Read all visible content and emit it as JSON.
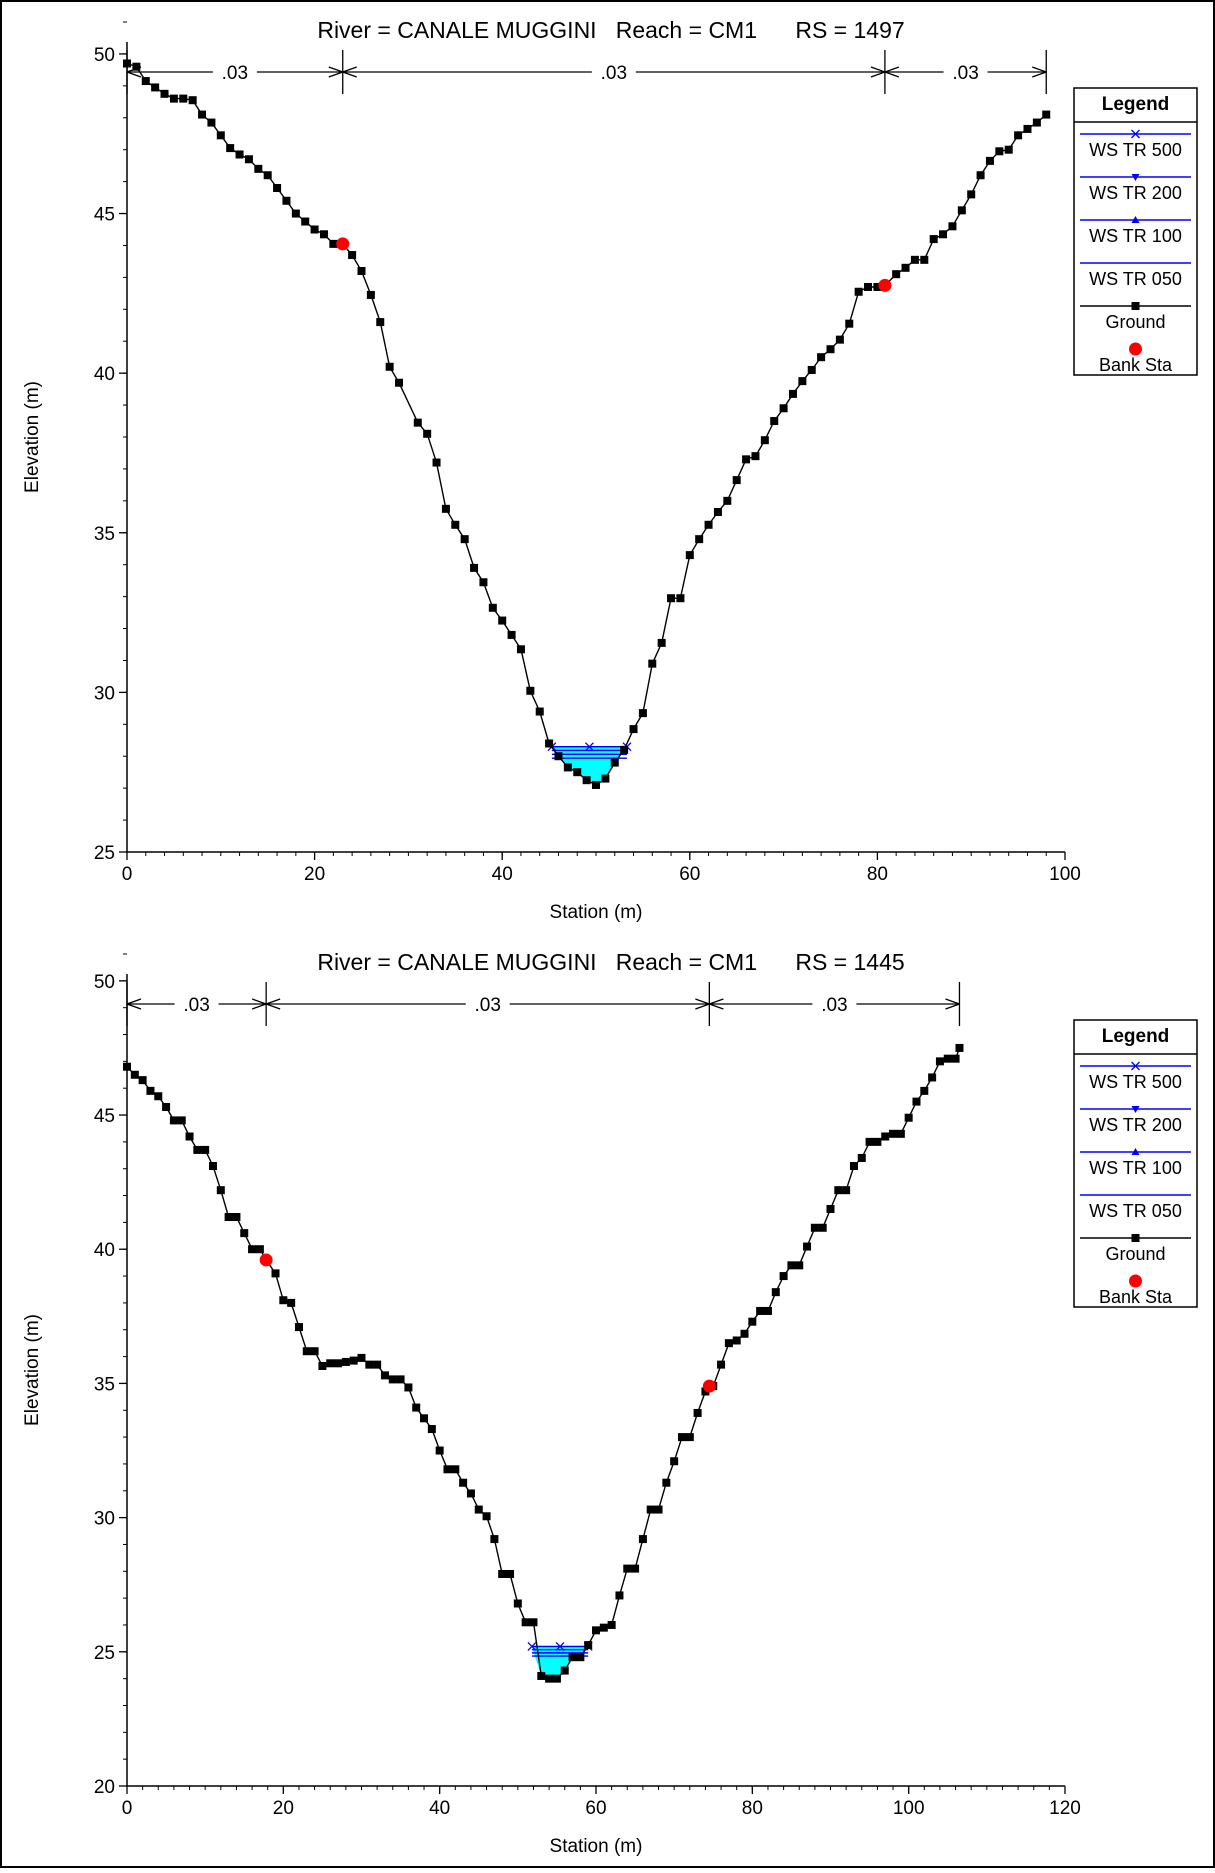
{
  "chart_data": [
    {
      "type": "line",
      "title": "River = CANALE MUGGINI   Reach = CM1      RS = 1497",
      "xlabel": "Station (m)",
      "ylabel": "Elevation (m)",
      "xlim": [
        0,
        100
      ],
      "ylim": [
        25,
        51
      ],
      "xticks": [
        "0",
        "20",
        "40",
        "60",
        "80",
        "100"
      ],
      "yticks": [
        "25",
        "30",
        "35",
        "40",
        "45",
        "50"
      ],
      "grid": false,
      "legend_position": "right",
      "legend": {
        "title": "Legend",
        "items": [
          "WS TR 500",
          "WS TR 200",
          "WS TR 100",
          "WS TR 050",
          "Ground",
          "Bank Sta"
        ]
      },
      "manning": [
        {
          "label": ".03",
          "from": 0,
          "to": 23
        },
        {
          "label": ".03",
          "from": 23,
          "to": 80.8
        },
        {
          "label": ".03",
          "from": 80.8,
          "to": 98
        }
      ],
      "bank_stations": [
        [
          23,
          44.05
        ],
        [
          80.8,
          42.75
        ]
      ],
      "water_surface": {
        "elevation": 28.3,
        "left": 45.3,
        "right": 53.3
      },
      "series": [
        {
          "name": "Ground",
          "points": [
            [
              0,
              49.7
            ],
            [
              1,
              49.6
            ],
            [
              2,
              49.15
            ],
            [
              3,
              48.95
            ],
            [
              4,
              48.75
            ],
            [
              5,
              48.6
            ],
            [
              6,
              48.6
            ],
            [
              7,
              48.55
            ],
            [
              8,
              48.1
            ],
            [
              9,
              47.85
            ],
            [
              10,
              47.45
            ],
            [
              11,
              47.05
            ],
            [
              12,
              46.85
            ],
            [
              13,
              46.7
            ],
            [
              14,
              46.4
            ],
            [
              15,
              46.2
            ],
            [
              16,
              45.8
            ],
            [
              17,
              45.4
            ],
            [
              18,
              45.0
            ],
            [
              19,
              44.75
            ],
            [
              20,
              44.5
            ],
            [
              21,
              44.35
            ],
            [
              22,
              44.05
            ],
            [
              23,
              44.05
            ],
            [
              24,
              43.7
            ],
            [
              25,
              43.2
            ],
            [
              26,
              42.45
            ],
            [
              27,
              41.6
            ],
            [
              28,
              40.2
            ],
            [
              29,
              39.7
            ],
            [
              31,
              38.45
            ],
            [
              32,
              38.1
            ],
            [
              33,
              37.2
            ],
            [
              34,
              35.75
            ],
            [
              35,
              35.25
            ],
            [
              36,
              34.8
            ],
            [
              37,
              33.9
            ],
            [
              38,
              33.45
            ],
            [
              39,
              32.65
            ],
            [
              40,
              32.25
            ],
            [
              41,
              31.8
            ],
            [
              42,
              31.35
            ],
            [
              43,
              30.05
            ],
            [
              44,
              29.4
            ],
            [
              45,
              28.4
            ],
            [
              46,
              28.0
            ],
            [
              47,
              27.65
            ],
            [
              48,
              27.5
            ],
            [
              49,
              27.25
            ],
            [
              50,
              27.1
            ],
            [
              51,
              27.3
            ],
            [
              52,
              27.8
            ],
            [
              53,
              28.2
            ],
            [
              54,
              28.85
            ],
            [
              55,
              29.35
            ],
            [
              56,
              30.9
            ],
            [
              57,
              31.55
            ],
            [
              58,
              32.95
            ],
            [
              59,
              32.95
            ],
            [
              60,
              34.3
            ],
            [
              61,
              34.8
            ],
            [
              62,
              35.25
            ],
            [
              63,
              35.65
            ],
            [
              64,
              36.0
            ],
            [
              65,
              36.65
            ],
            [
              66,
              37.3
            ],
            [
              67,
              37.4
            ],
            [
              68,
              37.9
            ],
            [
              69,
              38.5
            ],
            [
              70,
              38.9
            ],
            [
              71,
              39.35
            ],
            [
              72,
              39.75
            ],
            [
              73,
              40.1
            ],
            [
              74,
              40.5
            ],
            [
              75,
              40.75
            ],
            [
              76,
              41.05
            ],
            [
              77,
              41.55
            ],
            [
              78,
              42.55
            ],
            [
              79,
              42.7
            ],
            [
              80,
              42.7
            ],
            [
              80.8,
              42.75
            ],
            [
              82,
              43.1
            ],
            [
              83,
              43.3
            ],
            [
              84,
              43.55
            ],
            [
              85,
              43.55
            ],
            [
              86,
              44.2
            ],
            [
              87,
              44.35
            ],
            [
              88,
              44.6
            ],
            [
              89,
              45.1
            ],
            [
              90,
              45.6
            ],
            [
              91,
              46.2
            ],
            [
              92,
              46.65
            ],
            [
              93,
              46.95
            ],
            [
              94,
              47.0
            ],
            [
              95,
              47.45
            ],
            [
              96,
              47.65
            ],
            [
              97,
              47.85
            ],
            [
              98,
              48.1
            ]
          ]
        }
      ]
    },
    {
      "type": "line",
      "title": "River = CANALE MUGGINI   Reach = CM1      RS = 1445",
      "xlabel": "Station (m)",
      "ylabel": "Elevation (m)",
      "xlim": [
        0,
        120
      ],
      "ylim": [
        20,
        51
      ],
      "xticks": [
        "0",
        "20",
        "40",
        "60",
        "80",
        "100",
        "120"
      ],
      "yticks": [
        "20",
        "25",
        "30",
        "35",
        "40",
        "45",
        "50"
      ],
      "grid": false,
      "legend_position": "right",
      "legend": {
        "title": "Legend",
        "items": [
          "WS TR 500",
          "WS TR 200",
          "WS TR 100",
          "WS TR 050",
          "Ground",
          "Bank Sta"
        ]
      },
      "manning": [
        {
          "label": ".03",
          "from": 0,
          "to": 17.8
        },
        {
          "label": ".03",
          "from": 17.8,
          "to": 74.5
        },
        {
          "label": ".03",
          "from": 74.5,
          "to": 106.5
        }
      ],
      "bank_stations": [
        [
          17.8,
          39.6
        ],
        [
          74.5,
          34.9
        ]
      ],
      "water_surface": {
        "elevation": 25.2,
        "left": 51.8,
        "right": 59.0
      },
      "series": [
        {
          "name": "Ground",
          "points": [
            [
              0,
              46.8
            ],
            [
              1,
              46.5
            ],
            [
              2,
              46.3
            ],
            [
              3,
              45.9
            ],
            [
              4,
              45.7
            ],
            [
              5,
              45.3
            ],
            [
              6,
              44.8
            ],
            [
              7,
              44.8
            ],
            [
              8,
              44.2
            ],
            [
              9,
              43.7
            ],
            [
              10,
              43.7
            ],
            [
              11,
              43.1
            ],
            [
              12,
              42.2
            ],
            [
              13,
              41.2
            ],
            [
              14,
              41.2
            ],
            [
              15,
              40.6
            ],
            [
              16,
              40.0
            ],
            [
              17,
              40.0
            ],
            [
              17.8,
              39.6
            ],
            [
              19,
              39.1
            ],
            [
              20,
              38.1
            ],
            [
              21,
              38.0
            ],
            [
              22,
              37.1
            ],
            [
              23,
              36.2
            ],
            [
              24,
              36.2
            ],
            [
              25,
              35.65
            ],
            [
              26,
              35.75
            ],
            [
              27,
              35.75
            ],
            [
              28,
              35.8
            ],
            [
              29,
              35.85
            ],
            [
              30,
              35.95
            ],
            [
              31,
              35.7
            ],
            [
              32,
              35.7
            ],
            [
              33,
              35.3
            ],
            [
              34,
              35.15
            ],
            [
              35,
              35.15
            ],
            [
              36,
              34.85
            ],
            [
              37,
              34.1
            ],
            [
              38,
              33.7
            ],
            [
              39,
              33.3
            ],
            [
              40,
              32.5
            ],
            [
              41,
              31.8
            ],
            [
              42,
              31.8
            ],
            [
              43,
              31.3
            ],
            [
              44,
              30.9
            ],
            [
              45,
              30.3
            ],
            [
              46,
              30.05
            ],
            [
              47,
              29.2
            ],
            [
              48,
              27.9
            ],
            [
              49,
              27.9
            ],
            [
              50,
              26.8
            ],
            [
              51,
              26.1
            ],
            [
              52,
              26.1
            ],
            [
              53,
              24.1
            ],
            [
              54,
              24.0
            ],
            [
              55,
              24.0
            ],
            [
              56,
              24.3
            ],
            [
              57,
              24.8
            ],
            [
              58,
              24.8
            ],
            [
              59,
              25.25
            ],
            [
              60,
              25.8
            ],
            [
              61,
              25.9
            ],
            [
              62,
              26.0
            ],
            [
              63,
              27.1
            ],
            [
              64,
              28.1
            ],
            [
              65,
              28.1
            ],
            [
              66,
              29.2
            ],
            [
              67,
              30.3
            ],
            [
              68,
              30.3
            ],
            [
              69,
              31.3
            ],
            [
              70,
              32.1
            ],
            [
              71,
              33.0
            ],
            [
              72,
              33.0
            ],
            [
              73,
              33.9
            ],
            [
              74,
              34.7
            ],
            [
              74.5,
              34.9
            ],
            [
              75,
              34.9
            ],
            [
              76,
              35.7
            ],
            [
              77,
              36.5
            ],
            [
              78,
              36.6
            ],
            [
              79,
              36.85
            ],
            [
              80,
              37.3
            ],
            [
              81,
              37.7
            ],
            [
              82,
              37.7
            ],
            [
              83,
              38.4
            ],
            [
              84,
              39.0
            ],
            [
              85,
              39.4
            ],
            [
              86,
              39.4
            ],
            [
              87,
              40.1
            ],
            [
              88,
              40.8
            ],
            [
              89,
              40.8
            ],
            [
              90,
              41.5
            ],
            [
              91,
              42.2
            ],
            [
              92,
              42.2
            ],
            [
              93,
              43.1
            ],
            [
              94,
              43.4
            ],
            [
              95,
              44.0
            ],
            [
              96,
              44.0
            ],
            [
              97,
              44.2
            ],
            [
              98,
              44.3
            ],
            [
              99,
              44.3
            ],
            [
              100,
              44.9
            ],
            [
              101,
              45.5
            ],
            [
              102,
              45.9
            ],
            [
              103,
              46.4
            ],
            [
              104,
              47.0
            ],
            [
              105,
              47.1
            ],
            [
              106,
              47.1
            ],
            [
              106.5,
              47.5
            ]
          ]
        }
      ]
    }
  ]
}
